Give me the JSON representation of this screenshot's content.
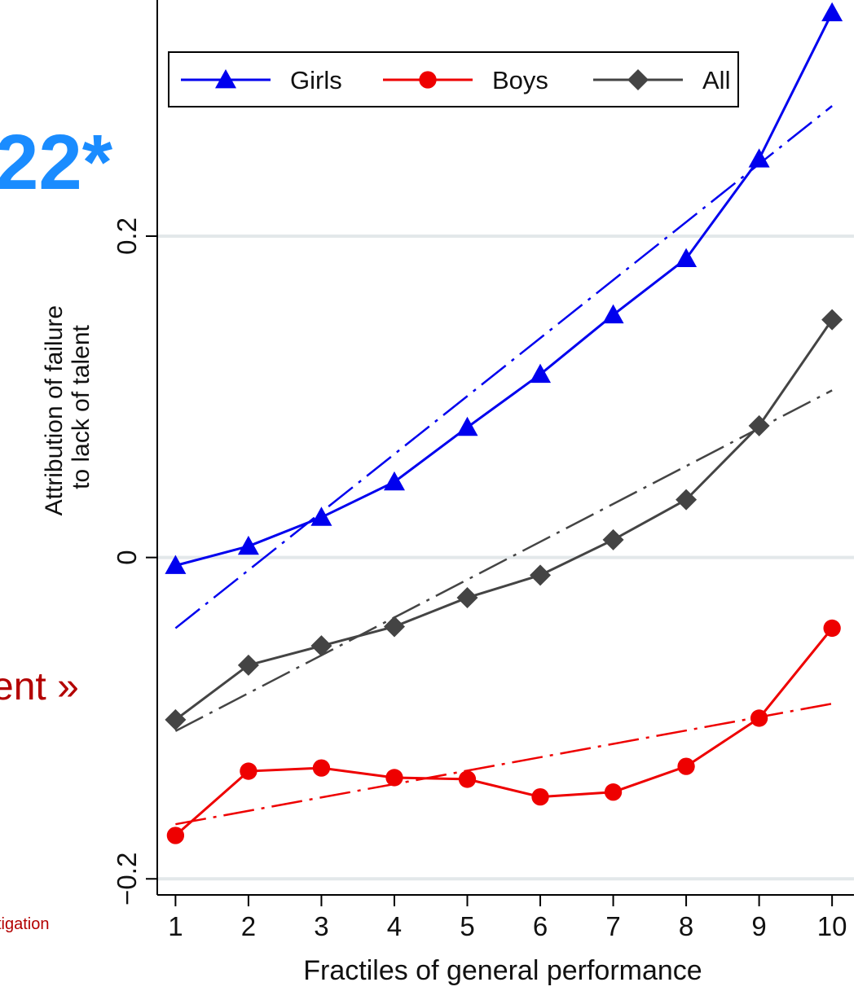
{
  "background_fragments": {
    "stat": "22*",
    "claim": "ent »",
    "source": "tigation"
  },
  "chart_data": {
    "type": "line",
    "x": [
      1,
      2,
      3,
      4,
      5,
      6,
      7,
      8,
      9,
      10
    ],
    "xlabel": "Fractiles of general performance",
    "ylabel_lines": [
      "Attribution of failure",
      "to lack of talent"
    ],
    "xticks": [
      1,
      2,
      3,
      4,
      5,
      6,
      7,
      8,
      9,
      10
    ],
    "yticks": [
      -0.2,
      0,
      0.2
    ],
    "ytick_labels": [
      "−0.2",
      "0",
      "0.2"
    ],
    "xlim": [
      0.75,
      10.3
    ],
    "ylim": [
      -0.21,
      0.35
    ],
    "grid": "horizontal at y ticks",
    "legend_position": "top-center",
    "series": [
      {
        "name": "Girls",
        "color": "#0000ee",
        "marker": "triangle",
        "values": [
          -0.005,
          0.007,
          0.025,
          0.047,
          0.081,
          0.114,
          0.151,
          0.186,
          0.248,
          0.339
        ],
        "fit": [
          -0.044,
          0.281
        ]
      },
      {
        "name": "Boys",
        "color": "#ee0000",
        "marker": "circle",
        "values": [
          -0.173,
          -0.133,
          -0.131,
          -0.137,
          -0.138,
          -0.149,
          -0.146,
          -0.13,
          -0.1,
          -0.044
        ],
        "fit": [
          -0.166,
          -0.091
        ]
      },
      {
        "name": "All",
        "color": "#444444",
        "marker": "diamond",
        "values": [
          -0.101,
          -0.067,
          -0.055,
          -0.043,
          -0.025,
          -0.011,
          0.011,
          0.036,
          0.082,
          0.148
        ],
        "fit": [
          -0.108,
          0.104
        ]
      }
    ]
  }
}
